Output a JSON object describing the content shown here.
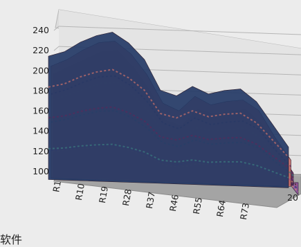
{
  "chart_data": {
    "type": "area",
    "style": "3d-surface",
    "y_ticks": [
      "240",
      "220",
      "200",
      "180",
      "160",
      "140",
      "120",
      "100"
    ],
    "ylim": [
      100,
      240
    ],
    "x_ticks": [
      "R1",
      "R10",
      "R19",
      "R28",
      "R37",
      "R46",
      "R55",
      "R64",
      "R73"
    ],
    "depth_tick": "20",
    "grid": true,
    "series": [
      {
        "values": [
          210,
          215,
          225,
          232,
          236,
          226,
          210,
          180,
          175,
          185,
          178,
          182,
          184,
          172,
          150,
          128
        ]
      },
      {
        "values": [
          205,
          212,
          222,
          230,
          232,
          220,
          200,
          172,
          165,
          180,
          172,
          176,
          178,
          168,
          142,
          120
        ]
      },
      {
        "values": [
          202,
          210,
          218,
          226,
          228,
          212,
          190,
          160,
          155,
          172,
          168,
          170,
          174,
          160,
          135,
          112
        ]
      },
      {
        "values": [
          200,
          206,
          214,
          222,
          224,
          205,
          182,
          150,
          148,
          166,
          160,
          165,
          170,
          152,
          128,
          105
        ]
      },
      {
        "values": [
          198,
          204,
          210,
          218,
          220,
          198,
          175,
          145,
          140,
          160,
          155,
          160,
          165,
          146,
          120,
          100
        ]
      }
    ],
    "band_colors": [
      "#243a66",
      "#c9706a",
      "#5a2a5a",
      "#3a7a80",
      "#8a4f9a",
      "#d08a72"
    ]
  },
  "caption": "软件"
}
